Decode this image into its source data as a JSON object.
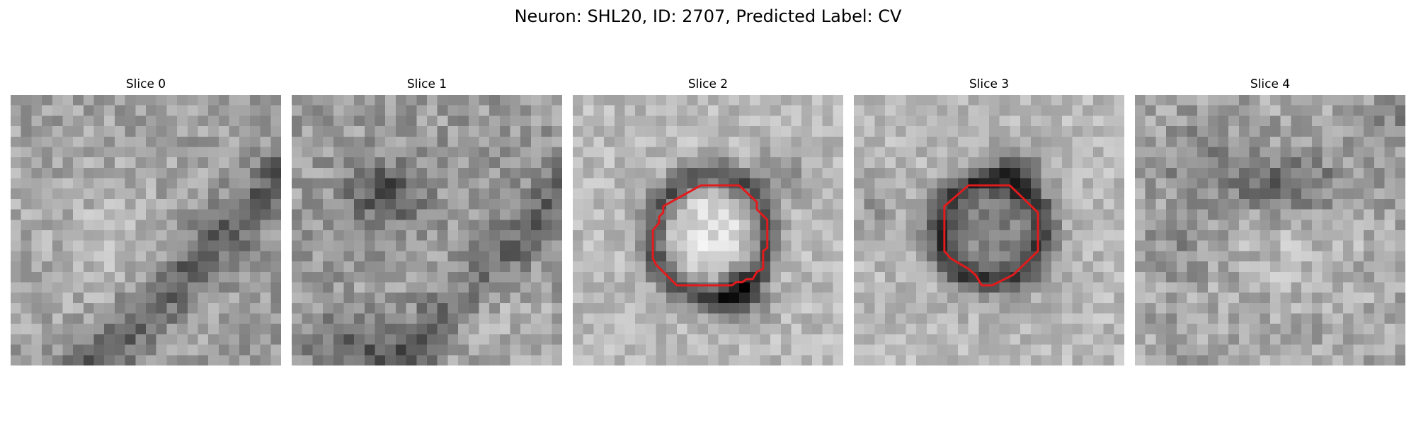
{
  "figure": {
    "title": "Neuron: SHL20, ID: 2707, Predicted Label: CV"
  },
  "panels": [
    {
      "title": "Slice 0",
      "seed": 11,
      "base": 160,
      "contrast": 32,
      "pattern": "diagonal-band",
      "has_contour": false
    },
    {
      "title": "Slice 1",
      "seed": 23,
      "base": 155,
      "contrast": 34,
      "pattern": "diagonal-band-blob",
      "has_contour": false
    },
    {
      "title": "Slice 2",
      "seed": 37,
      "base": 185,
      "contrast": 26,
      "pattern": "ring-bright-center",
      "has_contour": true
    },
    {
      "title": "Slice 3",
      "seed": 53,
      "base": 185,
      "contrast": 26,
      "pattern": "ring-dark-center",
      "has_contour": true
    },
    {
      "title": "Slice 4",
      "seed": 71,
      "base": 165,
      "contrast": 34,
      "pattern": "diffuse-dark",
      "has_contour": false
    }
  ],
  "contour": {
    "color": "#e41a1c",
    "slice_2": [
      [
        12.3,
        8.7
      ],
      [
        16.0,
        8.7
      ],
      [
        17.7,
        10.3
      ],
      [
        17.7,
        11.0
      ],
      [
        18.7,
        12.0
      ],
      [
        18.7,
        14.7
      ],
      [
        18.3,
        15.0
      ],
      [
        18.3,
        16.7
      ],
      [
        17.7,
        17.0
      ],
      [
        17.3,
        17.7
      ],
      [
        16.7,
        17.7
      ],
      [
        16.3,
        18.0
      ],
      [
        15.7,
        18.0
      ],
      [
        15.3,
        18.3
      ],
      [
        10.0,
        18.3
      ],
      [
        8.0,
        16.3
      ],
      [
        7.7,
        15.7
      ],
      [
        7.7,
        13.0
      ],
      [
        8.3,
        12.3
      ],
      [
        8.3,
        11.7
      ],
      [
        8.7,
        11.3
      ],
      [
        8.7,
        10.7
      ]
    ],
    "slice_3": [
      [
        11.0,
        8.7
      ],
      [
        15.0,
        8.7
      ],
      [
        17.7,
        11.3
      ],
      [
        17.7,
        15.0
      ],
      [
        15.3,
        17.3
      ],
      [
        13.3,
        18.3
      ],
      [
        12.3,
        18.3
      ],
      [
        11.7,
        17.3
      ],
      [
        11.0,
        16.7
      ],
      [
        9.3,
        15.7
      ],
      [
        8.7,
        15.0
      ],
      [
        8.7,
        10.7
      ]
    ]
  }
}
